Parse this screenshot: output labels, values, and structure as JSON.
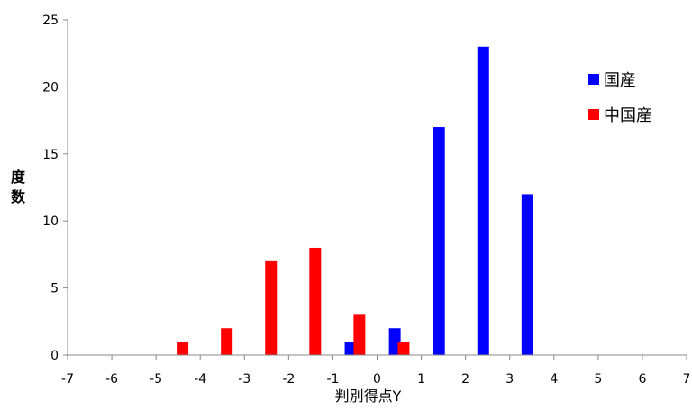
{
  "chart_data": {
    "type": "bar",
    "xlabel": "判別得点Y",
    "ylabel": "度数",
    "xlim": [
      -7,
      7
    ],
    "ylim": [
      0,
      25
    ],
    "x_ticks": [
      -7,
      -6,
      -5,
      -4,
      -3,
      -2,
      -1,
      0,
      1,
      2,
      3,
      4,
      5,
      6,
      7
    ],
    "y_ticks": [
      0,
      5,
      10,
      15,
      20,
      25
    ],
    "grid": false,
    "legend_position": "top-right",
    "series": [
      {
        "name": "国産",
        "color": "#0000ff",
        "points": [
          {
            "x": -0.6,
            "y": 1
          },
          {
            "x": 0.4,
            "y": 2
          },
          {
            "x": 1.4,
            "y": 17
          },
          {
            "x": 2.4,
            "y": 23
          },
          {
            "x": 3.4,
            "y": 12
          }
        ]
      },
      {
        "name": "中国産",
        "color": "#ff0000",
        "points": [
          {
            "x": -4.4,
            "y": 1
          },
          {
            "x": -3.4,
            "y": 2
          },
          {
            "x": -2.4,
            "y": 7
          },
          {
            "x": -1.4,
            "y": 8
          },
          {
            "x": -0.4,
            "y": 3
          },
          {
            "x": 0.6,
            "y": 1
          }
        ]
      }
    ]
  }
}
